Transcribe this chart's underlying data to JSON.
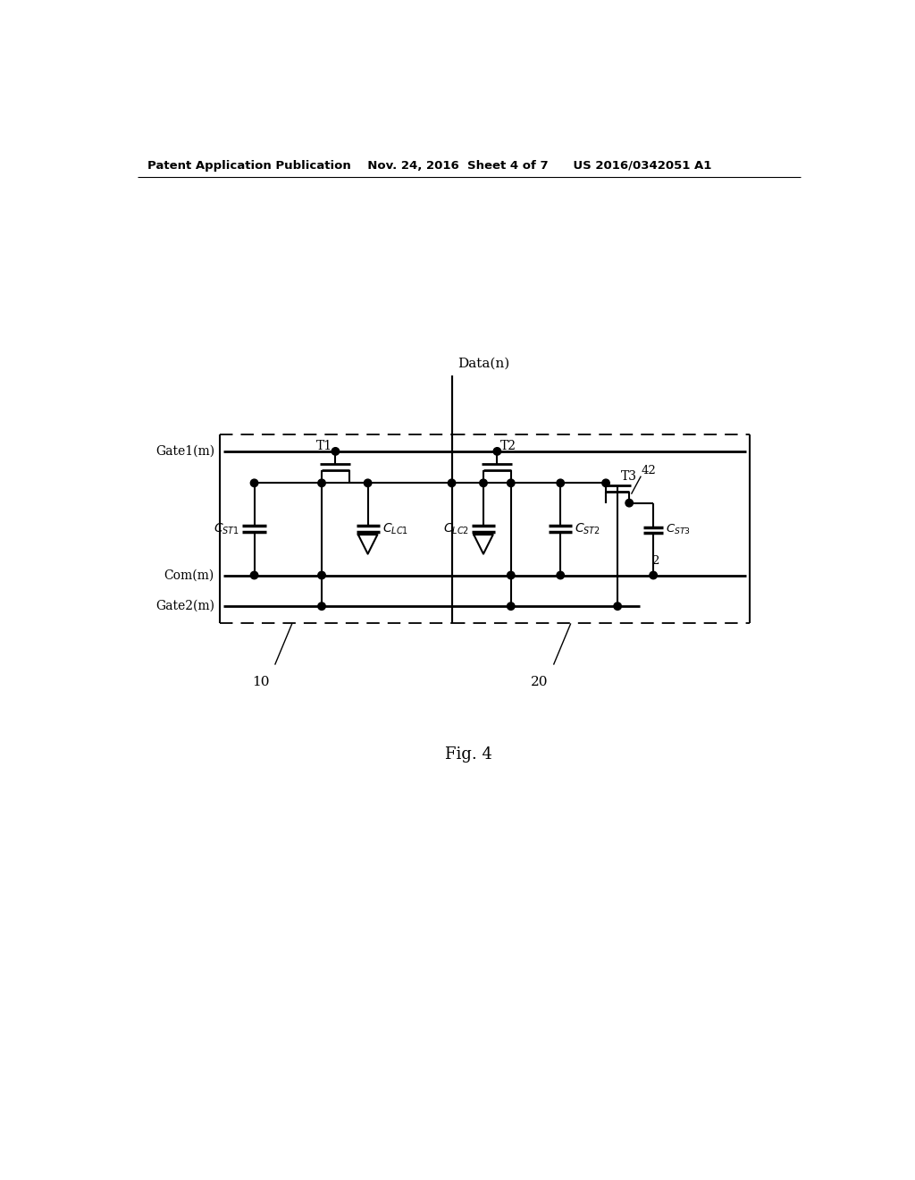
{
  "header": "Patent Application Publication    Nov. 24, 2016  Sheet 4 of 7      US 2016/0342051 A1",
  "fig_label": "Fig. 4",
  "background": "#ffffff",
  "line_color": "#000000",
  "gate1_label": "Gate1(m)",
  "com_label": "Com(m)",
  "gate2_label": "Gate2(m)",
  "data_label": "Data(n)",
  "t1_label": "T1",
  "t2_label": "T2",
  "t3_label": "T3",
  "ref42": "42",
  "ref2": "2",
  "ref10": "10",
  "ref20": "20",
  "cst1_label": "C_{ST1}",
  "clc1_label": "C_{LC1}",
  "clc2_label": "C_{LC2}",
  "cst2_label": "C_{ST2}",
  "cst3_label": "C_{ST3}"
}
